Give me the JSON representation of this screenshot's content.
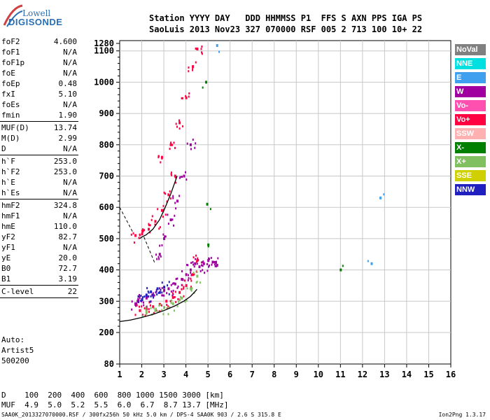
{
  "brand": {
    "line1": "Lowell",
    "line2": "DIGISONDE"
  },
  "header": {
    "row1": "Station YYYY DAY   DDD HHMMSS P1  FFS S AXN PPS IGA PS",
    "row2": "SaoLuis 2013 Nov23 327 070000 RSF 005 2 713 100 10+ 22"
  },
  "params": {
    "group1": [
      {
        "label": "foF2",
        "value": "4.600"
      },
      {
        "label": "foF1",
        "value": "N/A"
      },
      {
        "label": "foF1p",
        "value": "N/A"
      },
      {
        "label": "foE",
        "value": "N/A"
      },
      {
        "label": "foEp",
        "value": "0.48"
      },
      {
        "label": "fxI",
        "value": "5.10"
      },
      {
        "label": "foEs",
        "value": "N/A"
      },
      {
        "label": "fmin",
        "value": "1.90"
      }
    ],
    "group2": [
      {
        "label": "MUF(D)",
        "value": "13.74"
      },
      {
        "label": "M(D)",
        "value": "2.99"
      },
      {
        "label": "D",
        "value": "N/A"
      }
    ],
    "group3": [
      {
        "label": "h`F",
        "value": "253.0"
      },
      {
        "label": "h`F2",
        "value": "253.0"
      },
      {
        "label": "h`E",
        "value": "N/A"
      },
      {
        "label": "h`Es",
        "value": "N/A"
      }
    ],
    "group4": [
      {
        "label": "hmF2",
        "value": "324.8"
      },
      {
        "label": "hmF1",
        "value": "N/A"
      },
      {
        "label": "hmE",
        "value": "110.0"
      },
      {
        "label": "yF2",
        "value": "82.7"
      },
      {
        "label": "yF1",
        "value": "N/A"
      },
      {
        "label": "yE",
        "value": "20.0"
      },
      {
        "label": "B0",
        "value": "72.7"
      },
      {
        "label": "B1",
        "value": "3.19"
      }
    ],
    "group5": [
      {
        "label": "C-level",
        "value": "22"
      }
    ]
  },
  "auto": {
    "line1": "Auto:",
    "line2": "Artist5",
    "line3": "500200"
  },
  "legend": [
    {
      "label": "NoVal",
      "color": "#808080"
    },
    {
      "label": "NNE",
      "color": "#00e0e0"
    },
    {
      "label": "E",
      "color": "#3fa0f0"
    },
    {
      "label": "W",
      "color": "#a000a0"
    },
    {
      "label": "Vo-",
      "color": "#ff50b0"
    },
    {
      "label": "Vo+",
      "color": "#ff0040"
    },
    {
      "label": "SSW",
      "color": "#ffb0b0"
    },
    {
      "label": "X-",
      "color": "#008000"
    },
    {
      "label": "X+",
      "color": "#80c060"
    },
    {
      "label": "SSE",
      "color": "#d0d000"
    },
    {
      "label": "NNW",
      "color": "#2020c0"
    }
  ],
  "muf": {
    "row1": "D    100  200  400  600  800 1000 1500 3000 [km]",
    "row2": "MUF  4.9  5.0  5.2  5.5  6.0  6.7  8.7 13.7 [MHz]"
  },
  "footer": {
    "left": "SAA0K_2013327070000.RSF / 300fx256h 50 kHz 5.0 km / DPS-4 SAA0K 903 / 2.6 S 315.8 E",
    "right": "Ion2Png 1.3.17"
  },
  "chart_data": {
    "type": "scatter",
    "x_ticks": [
      "1",
      "2",
      "3",
      "4",
      "5",
      "6",
      "7",
      "8",
      "9",
      "10",
      "11",
      "12",
      "13",
      "14",
      "15",
      "16"
    ],
    "y_ticks": [
      "80",
      "200",
      "300",
      "400",
      "500",
      "600",
      "700",
      "800",
      "900",
      "1000",
      "1100",
      "1280"
    ],
    "xlim": [
      1,
      16
    ],
    "ylim": [
      80,
      1280
    ],
    "x_unit": "MHz",
    "y_unit": "km",
    "traces": [
      {
        "mode": "W",
        "x": [
          1.7,
          1.8,
          2.0,
          2.2,
          2.5,
          2.8,
          3.0,
          3.2,
          3.5,
          3.8,
          4.0,
          4.2,
          4.4
        ],
        "y": [
          292,
          300,
          305,
          310,
          318,
          328,
          335,
          340,
          355,
          370,
          385,
          400,
          420
        ]
      },
      {
        "mode": "Vo+",
        "x": [
          1.9,
          2.2,
          2.5,
          2.8,
          3.1,
          3.4,
          3.7,
          4.0,
          4.3,
          4.5
        ],
        "y": [
          270,
          275,
          282,
          290,
          300,
          312,
          328,
          350,
          385,
          430
        ]
      },
      {
        "mode": "X+",
        "x": [
          2.2,
          2.6,
          3.0,
          3.4,
          3.8,
          4.2,
          4.5
        ],
        "y": [
          265,
          270,
          280,
          292,
          310,
          340,
          380
        ]
      },
      {
        "mode": "Vo+",
        "x": [
          1.7,
          2.0,
          2.3,
          2.6,
          2.9,
          3.2,
          3.5
        ],
        "y": [
          510,
          515,
          530,
          555,
          590,
          640,
          700
        ]
      },
      {
        "mode": "Vo+",
        "x": [
          2.9,
          3.3,
          3.7,
          4.0,
          4.3,
          4.5
        ],
        "y": [
          760,
          800,
          870,
          950,
          1050,
          1150
        ]
      },
      {
        "mode": "W",
        "x": [
          2.8,
          3.0,
          3.3,
          3.6,
          3.9,
          4.2
        ],
        "y": [
          450,
          500,
          560,
          620,
          700,
          800
        ]
      },
      {
        "mode": "W",
        "x": [
          4.6,
          4.8,
          5.0,
          5.2,
          5.4
        ],
        "y": [
          410,
          420,
          430,
          425,
          415
        ]
      },
      {
        "mode": "NNW",
        "x": [
          2.0,
          2.2,
          2.4,
          2.7,
          3.0
        ],
        "y": [
          305,
          320,
          330,
          340,
          345
        ]
      },
      {
        "mode": "E",
        "x": [
          5.4,
          12.4,
          12.8
        ],
        "y": [
          1230,
          420,
          630
        ]
      },
      {
        "mode": "X-",
        "x": [
          4.9,
          4.95,
          5.0,
          11.0
        ],
        "y": [
          1000,
          610,
          480,
          400
        ]
      }
    ],
    "model_curve": {
      "x": [
        1.0,
        1.5,
        2.0,
        2.5,
        3.0,
        3.5,
        3.9,
        4.2,
        4.4,
        4.5
      ],
      "y": [
        235,
        240,
        248,
        258,
        270,
        285,
        300,
        315,
        330,
        338
      ]
    },
    "model_curve_upper": {
      "x": [
        1.9,
        2.0,
        2.2,
        2.5,
        2.8,
        3.0,
        3.3,
        3.6
      ],
      "y": [
        500,
        505,
        512,
        530,
        560,
        590,
        640,
        700
      ]
    },
    "dashed_lines": [
      {
        "x": [
          1.0,
          1.6
        ],
        "y": [
          600,
          520
        ]
      },
      {
        "x": [
          2.1,
          2.6
        ],
        "y": [
          505,
          420
        ]
      }
    ]
  }
}
